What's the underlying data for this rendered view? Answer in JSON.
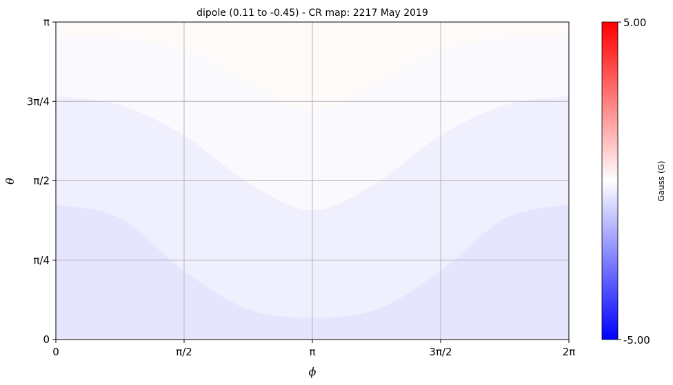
{
  "chart_data": {
    "type": "heatmap",
    "title": "dipole (0.11 to -0.45) - CR map: 2217 May 2019",
    "xlabel": "ϕ",
    "ylabel": "θ",
    "xlim": [
      0,
      6.2832
    ],
    "ylim": [
      0,
      3.1416
    ],
    "grid": true,
    "x_ticks": [
      {
        "value": 0,
        "label": "0"
      },
      {
        "value": 1.5708,
        "label": "π/2"
      },
      {
        "value": 3.1416,
        "label": "π"
      },
      {
        "value": 4.7124,
        "label": "3π/2"
      },
      {
        "value": 6.2832,
        "label": "2π"
      }
    ],
    "y_ticks": [
      {
        "value": 0,
        "label": "0"
      },
      {
        "value": 0.7854,
        "label": "π/4"
      },
      {
        "value": 1.5708,
        "label": "π/2"
      },
      {
        "value": 2.3562,
        "label": "3π/4"
      },
      {
        "value": 3.1416,
        "label": "π"
      }
    ],
    "field": {
      "dipole_max": 0.11,
      "dipole_min": -0.45,
      "contour_levels": [
        -0.45,
        -0.31,
        -0.17,
        -0.03,
        0.11
      ],
      "level_colors": [
        "#e5e5fd",
        "#efeffd",
        "#f9f9fe",
        "#fefafa"
      ],
      "boundaries": [
        {
          "level": -0.31,
          "x": [
            0,
            0.79,
            1.57,
            2.36,
            3.14,
            3.93,
            4.71,
            5.5,
            6.28
          ],
          "y": [
            1.34,
            1.2,
            0.68,
            0.3,
            0.22,
            0.3,
            0.68,
            1.2,
            1.34
          ]
        },
        {
          "level": -0.17,
          "x": [
            0,
            0.79,
            1.57,
            2.36,
            3.14,
            3.93,
            4.71,
            5.5,
            6.28
          ],
          "y": [
            2.41,
            2.32,
            2.02,
            1.55,
            1.28,
            1.55,
            2.02,
            2.32,
            2.41
          ]
        },
        {
          "level": -0.03,
          "x": [
            0,
            0.79,
            1.57,
            2.36,
            3.14,
            3.93,
            4.71,
            5.5,
            6.28
          ],
          "y": [
            3.0,
            2.98,
            2.85,
            2.53,
            2.27,
            2.53,
            2.85,
            2.98,
            3.0
          ]
        }
      ]
    },
    "colorbar": {
      "label": "Gauss (G)",
      "min": -5.0,
      "max": 5.0,
      "min_label": "-5.00",
      "max_label": "5.00",
      "colors": [
        "#0000ff",
        "#ffffff",
        "#ff0000"
      ]
    }
  }
}
